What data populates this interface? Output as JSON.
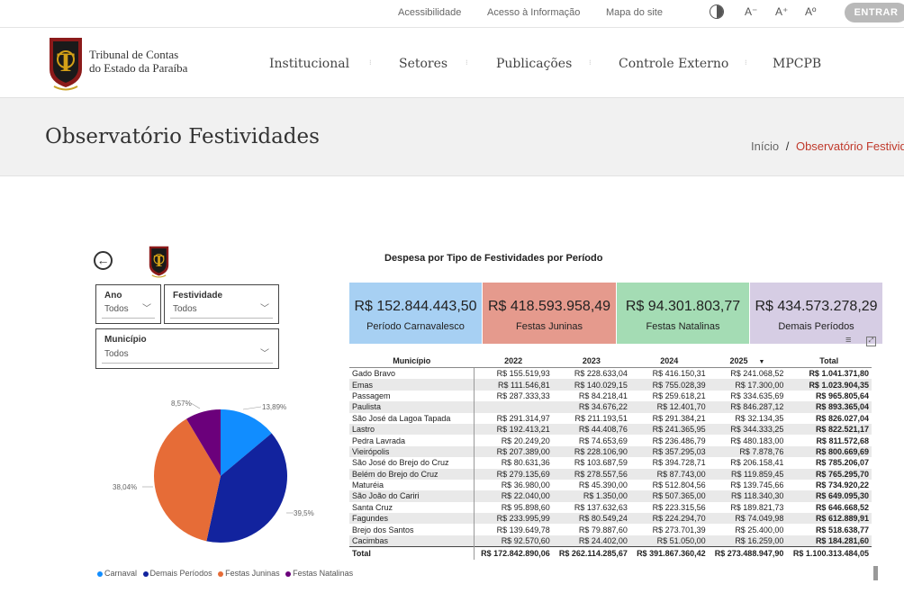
{
  "util": {
    "links": [
      "Acessibilidade",
      "Acesso à Informação",
      "Mapa do site"
    ],
    "font_minus": "A⁻",
    "font_plus": "A⁺",
    "font_reset": "Aº",
    "enter": "ENTRAR"
  },
  "brand": {
    "line1": "Tribunal de Contas",
    "line2": "do Estado da Paraíba"
  },
  "nav": [
    "Institucional",
    "Setores",
    "Publicações",
    "Controle Externo",
    "MPCPB"
  ],
  "page": {
    "title": "Observatório Festividades"
  },
  "breadcrumb": {
    "home": "Início",
    "sep": "/",
    "current": "Observatório Festividades"
  },
  "filters": {
    "ano": {
      "label": "Ano",
      "value": "Todos"
    },
    "festividade": {
      "label": "Festividade",
      "value": "Todos"
    },
    "municipio": {
      "label": "Município",
      "value": "Todos"
    }
  },
  "chart_title": "Despesa por Tipo de Festividades por Período",
  "cards": [
    {
      "value": "R$ 152.844.443,50",
      "label": "Período Carnavalesco",
      "color": "#a7d0f3"
    },
    {
      "value": "R$ 418.593.958,49",
      "label": "Festas Juninas",
      "color": "#e59a8d"
    },
    {
      "value": "R$ 94.301.803,77",
      "label": "Festas Natalinas",
      "color": "#a4dcb4"
    },
    {
      "value": "R$ 434.573.278,29",
      "label": "Demais Períodos",
      "color": "#d6cde4"
    }
  ],
  "chart_data": {
    "type": "pie",
    "slices": [
      {
        "name": "Carnaval",
        "value": 13.89,
        "label": "13,89%",
        "color": "#118dff"
      },
      {
        "name": "Demais Períodos",
        "value": 39.5,
        "label": "39,5%",
        "color": "#12239e"
      },
      {
        "name": "Festas Juninas",
        "value": 38.04,
        "label": "38,04%",
        "color": "#e66c37"
      },
      {
        "name": "Festas Natalinas",
        "value": 8.57,
        "label": "8,57%",
        "color": "#6b007b"
      }
    ],
    "legend_position": "bottom"
  },
  "table": {
    "headers": [
      "Município",
      "2022",
      "2023",
      "2024",
      "2025",
      "Total"
    ],
    "rows": [
      [
        "Gado Bravo",
        "R$ 155.519,93",
        "R$ 228.633,04",
        "R$ 416.150,31",
        "R$ 241.068,52",
        "R$ 1.041.371,80"
      ],
      [
        "Emas",
        "R$ 111.546,81",
        "R$ 140.029,15",
        "R$ 755.028,39",
        "R$ 17.300,00",
        "R$ 1.023.904,35"
      ],
      [
        "Passagem",
        "R$ 287.333,33",
        "R$ 84.218,41",
        "R$ 259.618,21",
        "R$ 334.635,69",
        "R$ 965.805,64"
      ],
      [
        "Paulista",
        "",
        "R$ 34.676,22",
        "R$ 12.401,70",
        "R$ 846.287,12",
        "R$ 893.365,04"
      ],
      [
        "São José da Lagoa Tapada",
        "R$ 291.314,97",
        "R$ 211.193,51",
        "R$ 291.384,21",
        "R$ 32.134,35",
        "R$ 826.027,04"
      ],
      [
        "Lastro",
        "R$ 192.413,21",
        "R$ 44.408,76",
        "R$ 241.365,95",
        "R$ 344.333,25",
        "R$ 822.521,17"
      ],
      [
        "Pedra Lavrada",
        "R$ 20.249,20",
        "R$ 74.653,69",
        "R$ 236.486,79",
        "R$ 480.183,00",
        "R$ 811.572,68"
      ],
      [
        "Vieirópolis",
        "R$ 207.389,00",
        "R$ 228.106,90",
        "R$ 357.295,03",
        "R$ 7.878,76",
        "R$ 800.669,69"
      ],
      [
        "São José do Brejo do Cruz",
        "R$ 80.631,36",
        "R$ 103.687,59",
        "R$ 394.728,71",
        "R$ 206.158,41",
        "R$ 785.206,07"
      ],
      [
        "Belém do Brejo do Cruz",
        "R$ 279.135,69",
        "R$ 278.557,56",
        "R$ 87.743,00",
        "R$ 119.859,45",
        "R$ 765.295,70"
      ],
      [
        "Maturéia",
        "R$ 36.980,00",
        "R$ 45.390,00",
        "R$ 512.804,56",
        "R$ 139.745,66",
        "R$ 734.920,22"
      ],
      [
        "São João do Cariri",
        "R$ 22.040,00",
        "R$ 1.350,00",
        "R$ 507.365,00",
        "R$ 118.340,30",
        "R$ 649.095,30"
      ],
      [
        "Santa Cruz",
        "R$ 95.898,60",
        "R$ 137.632,63",
        "R$ 223.315,56",
        "R$ 189.821,73",
        "R$ 646.668,52"
      ],
      [
        "Fagundes",
        "R$ 233.995,99",
        "R$ 80.549,24",
        "R$ 224.294,70",
        "R$ 74.049,98",
        "R$ 612.889,91"
      ],
      [
        "Brejo dos Santos",
        "R$ 139.649,78",
        "R$ 79.887,60",
        "R$ 273.701,39",
        "R$ 25.400,00",
        "R$ 518.638,77"
      ],
      [
        "Cacimbas",
        "R$ 92.570,60",
        "R$ 24.402,00",
        "R$ 51.050,00",
        "R$ 16.259,00",
        "R$ 184.281,60"
      ]
    ],
    "total": [
      "Total",
      "R$ 172.842.890,06",
      "R$ 262.114.285,67",
      "R$ 391.867.360,42",
      "R$ 273.488.947,90",
      "R$ 1.100.313.484,05"
    ]
  }
}
